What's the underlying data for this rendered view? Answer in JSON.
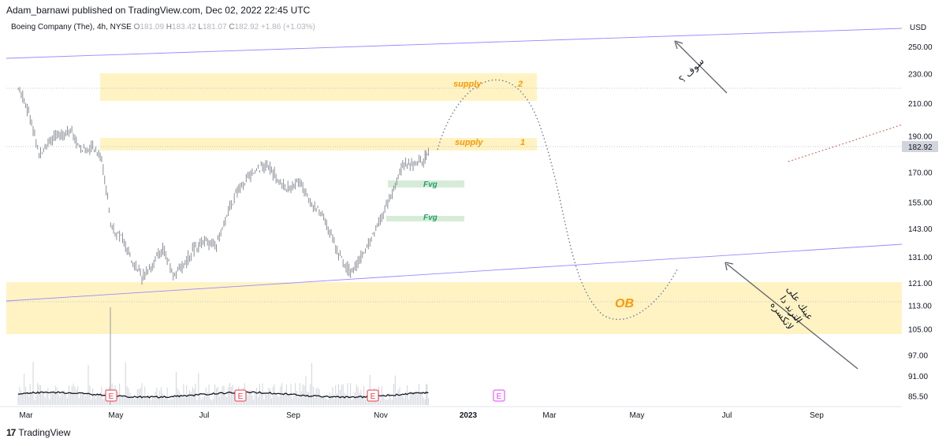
{
  "publish_line": "Adam_barnawi published on TradingView.com, Dec 02, 2022 22:45 UTC",
  "legend": {
    "symbol": "Boeing Company (The), 4h, NYSE",
    "o_label": "O",
    "o": "181.09",
    "h_label": "H",
    "h": "183.42",
    "l_label": "L",
    "l": "181.07",
    "c_label": "C",
    "c": "182.92",
    "change": "+1.86 (+1.03%)"
  },
  "footer": {
    "logo_text": "17",
    "brand": "TradingView"
  },
  "colors": {
    "zone_fill": "#fff3c4",
    "fvg_fill": "#d6ecd8",
    "channel_line": "#9c88ff",
    "annotation_orange": "#ff9800",
    "fvg_text": "#22a06b",
    "price_tag_bg": "#d1d4dc",
    "earnings_red": "#f23645",
    "earnings_pink": "#e040fb"
  },
  "chart_data": {
    "type": "line",
    "title": "Boeing Company (The), 4h, NYSE",
    "currency_label": "USD",
    "x_ticks": [
      "Mar",
      "May",
      "Jul",
      "Sep",
      "Nov",
      "2023",
      "Mar",
      "May",
      "Jul",
      "Sep"
    ],
    "y_ticks": [
      250.0,
      230.0,
      210.0,
      190.0,
      170.0,
      155.0,
      143.0,
      131.0,
      121.0,
      113.0,
      105.0,
      97.0,
      91.0,
      85.5
    ],
    "y_scale": "log",
    "ylim": [
      83,
      270
    ],
    "last_price": "182.92",
    "series": [
      {
        "points": [
          [
            "2022-03-01",
            220
          ],
          [
            "2022-03-08",
            205
          ],
          [
            "2022-03-15",
            180
          ],
          [
            "2022-03-22",
            188
          ],
          [
            "2022-03-29",
            190
          ],
          [
            "2022-04-05",
            195
          ],
          [
            "2022-04-12",
            182
          ],
          [
            "2022-04-19",
            185
          ],
          [
            "2022-04-26",
            178
          ],
          [
            "2022-05-02",
            145
          ],
          [
            "2022-05-09",
            140
          ],
          [
            "2022-05-16",
            130
          ],
          [
            "2022-05-23",
            124
          ],
          [
            "2022-05-30",
            128
          ],
          [
            "2022-06-06",
            135
          ],
          [
            "2022-06-13",
            124
          ],
          [
            "2022-06-20",
            128
          ],
          [
            "2022-06-27",
            135
          ],
          [
            "2022-07-05",
            138
          ],
          [
            "2022-07-12",
            136
          ],
          [
            "2022-07-19",
            150
          ],
          [
            "2022-07-26",
            160
          ],
          [
            "2022-08-02",
            168
          ],
          [
            "2022-08-09",
            172
          ],
          [
            "2022-08-16",
            174
          ],
          [
            "2022-08-23",
            165
          ],
          [
            "2022-08-30",
            162
          ],
          [
            "2022-09-06",
            166
          ],
          [
            "2022-09-13",
            155
          ],
          [
            "2022-09-20",
            150
          ],
          [
            "2022-09-27",
            140
          ],
          [
            "2022-10-04",
            130
          ],
          [
            "2022-10-11",
            125
          ],
          [
            "2022-10-18",
            132
          ],
          [
            "2022-10-25",
            140
          ],
          [
            "2022-11-01",
            150
          ],
          [
            "2022-11-08",
            162
          ],
          [
            "2022-11-15",
            175
          ],
          [
            "2022-11-22",
            174
          ],
          [
            "2022-11-29",
            178
          ],
          [
            "2022-12-02",
            182.92
          ]
        ]
      }
    ]
  },
  "annotations": {
    "supply_label": "supply",
    "supply_2_num": "2",
    "supply_1_num": "1",
    "fvg_label": "Fvg",
    "ob_label": "OB",
    "earnings_label": "E",
    "arabic_top": "سوف ؟",
    "arabic_bottom_l1": "عينك على",
    "arabic_bottom_l2": "الترند دا",
    "arabic_bottom_l3": "لاتكسره"
  }
}
